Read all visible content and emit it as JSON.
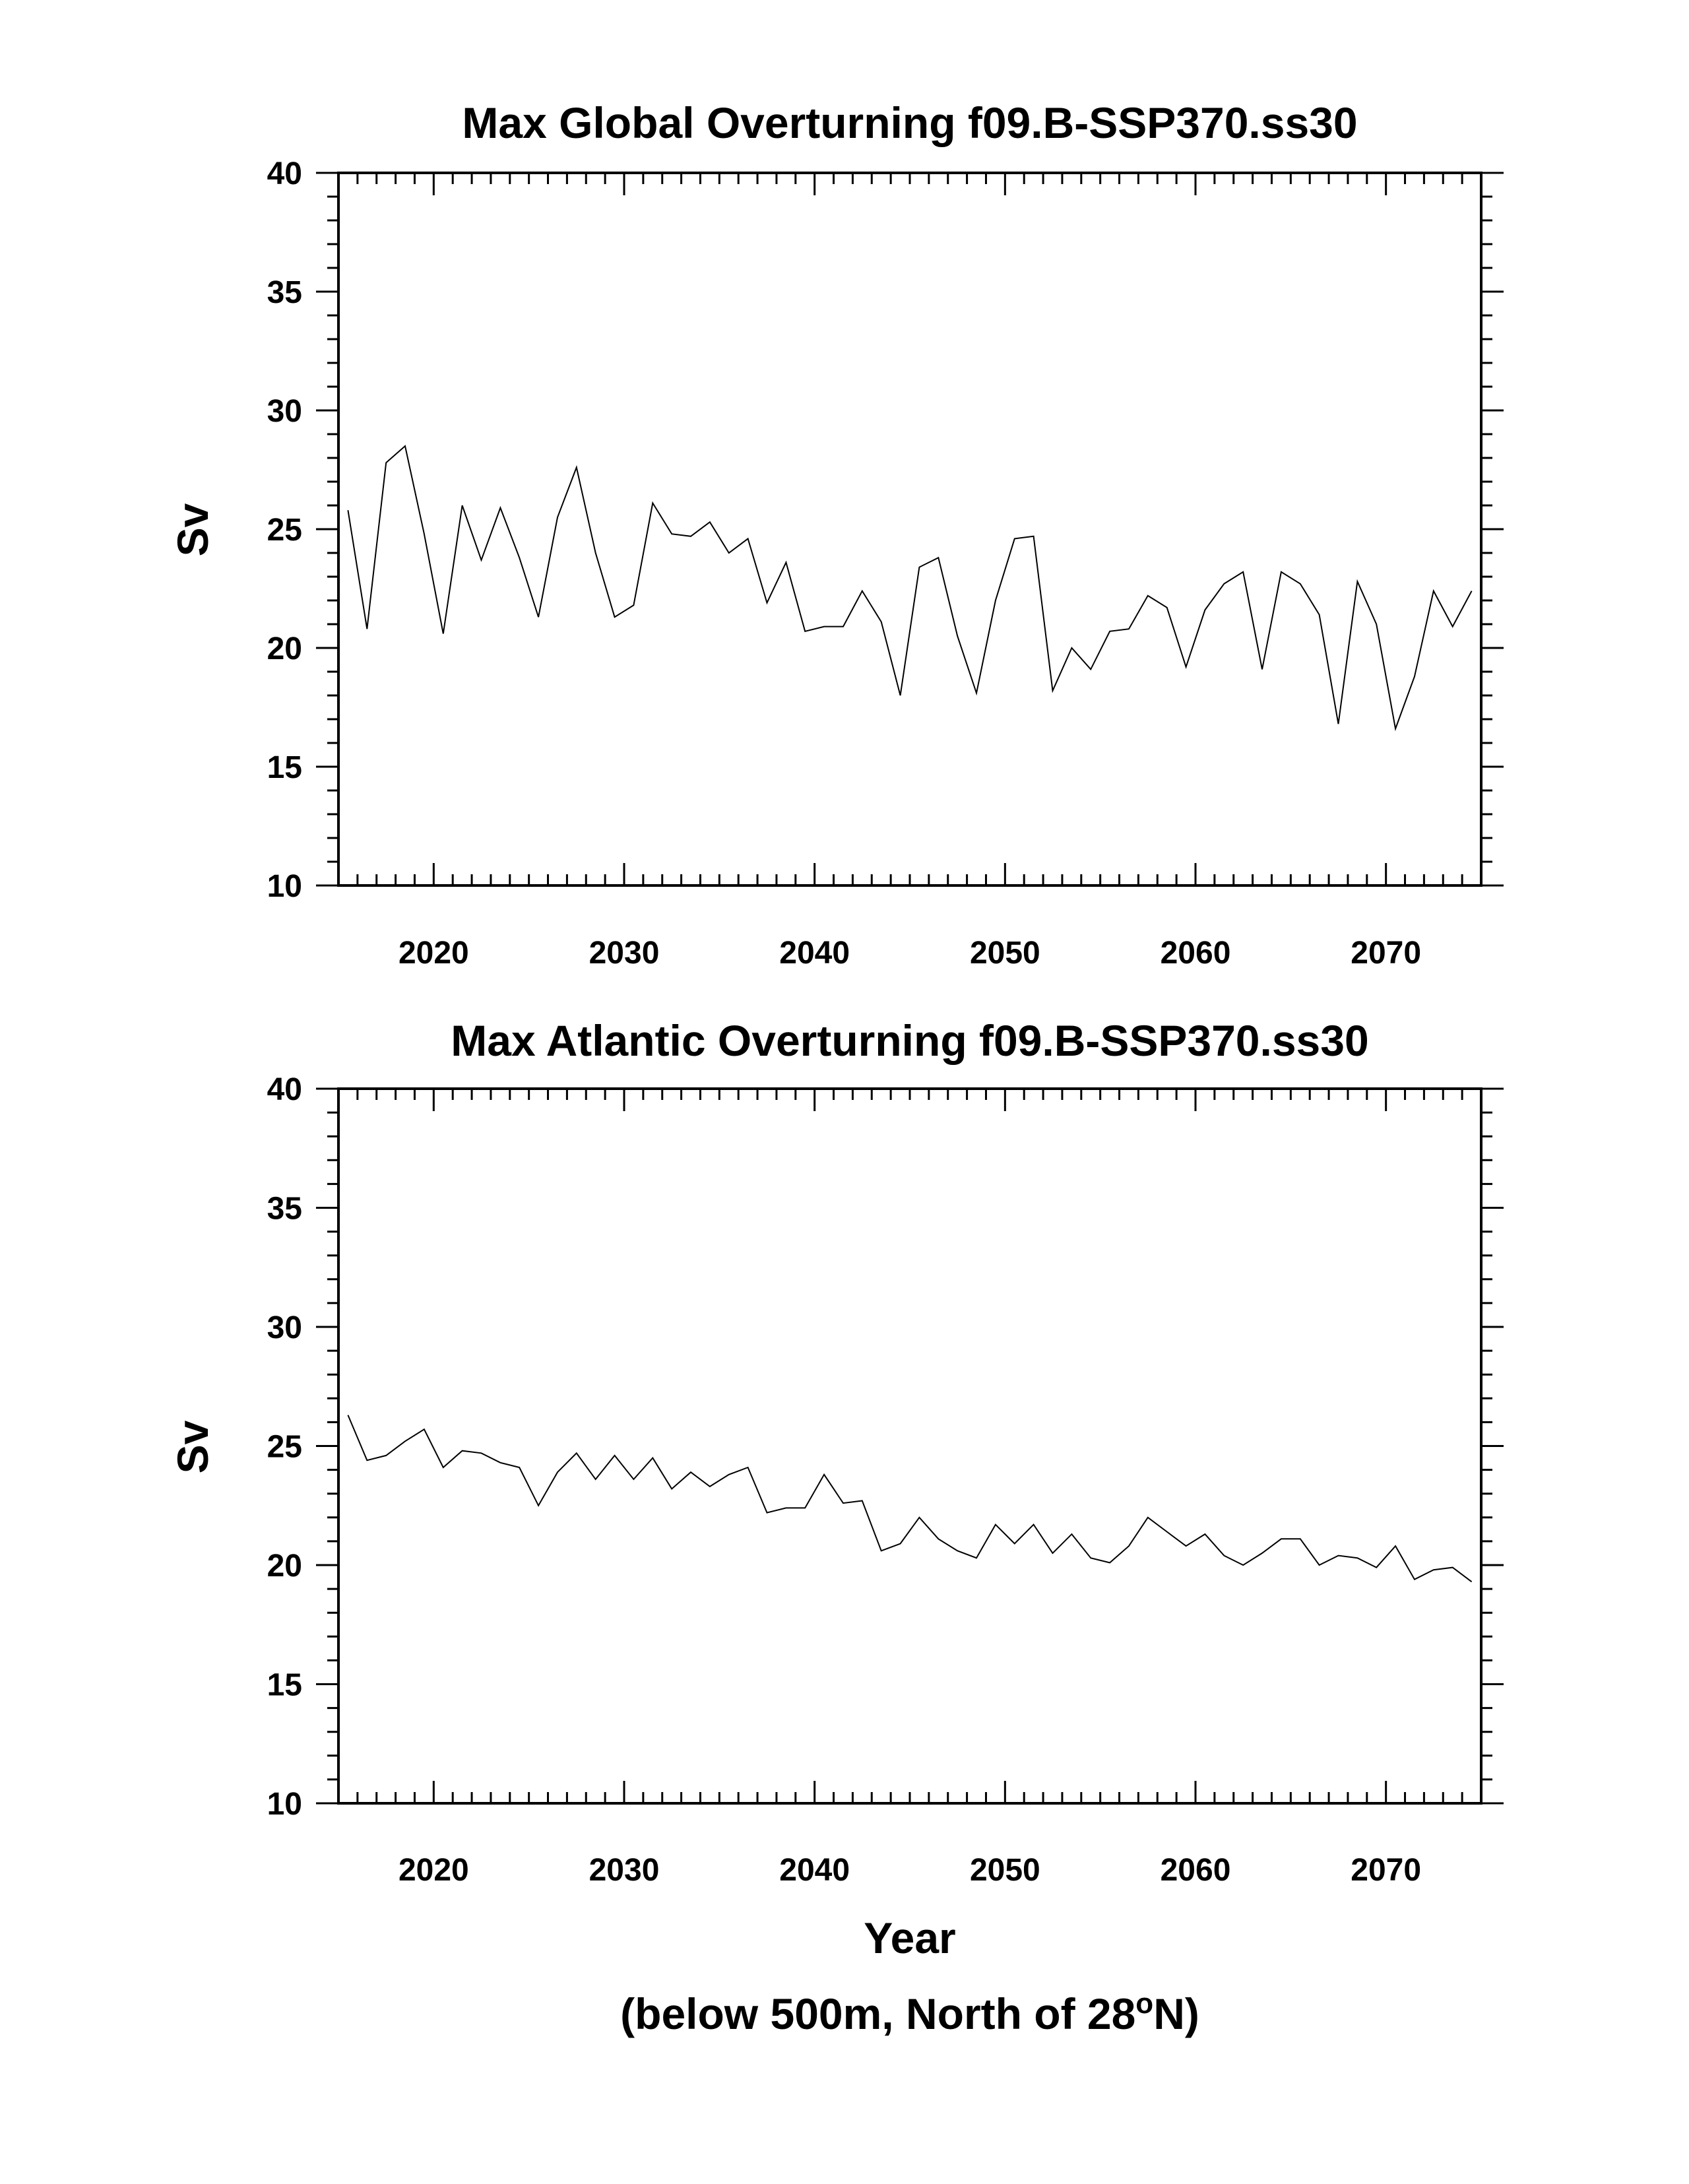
{
  "chart_data": [
    {
      "type": "line",
      "title": "Max Global Overturning f09.B-SSP370.ss30",
      "ylabel": "Sv",
      "xlabel": "",
      "xlim": [
        2015,
        2075
      ],
      "ylim": [
        10,
        40
      ],
      "xticks": [
        2020,
        2030,
        2040,
        2050,
        2060,
        2070
      ],
      "yticks": [
        10,
        15,
        20,
        25,
        30,
        35,
        40
      ],
      "x_start": 2015.5,
      "grid": false,
      "legend": "none",
      "line_color": "#000000",
      "series": [
        {
          "values": [
            25.8,
            20.8,
            27.8,
            28.5,
            24.8,
            20.6,
            26.0,
            23.7,
            25.9,
            23.8,
            21.3,
            25.5,
            27.6,
            24.0,
            21.3,
            21.8,
            26.1,
            24.8,
            24.7,
            25.3,
            24.0,
            24.6,
            21.9,
            23.6,
            20.7,
            20.9,
            20.9,
            22.4,
            21.1,
            18.0,
            23.4,
            23.8,
            20.5,
            18.1,
            22.0,
            24.6,
            24.7,
            18.2,
            20.0,
            19.1,
            20.7,
            20.8,
            22.2,
            21.7,
            19.2,
            21.6,
            22.7,
            23.2,
            19.1,
            23.2,
            22.7,
            21.4,
            16.8,
            22.8,
            21.0,
            16.6,
            18.8,
            22.4,
            20.9,
            22.4
          ]
        }
      ]
    },
    {
      "type": "line",
      "title": "Max Atlantic Overturning f09.B-SSP370.ss30",
      "ylabel": "Sv",
      "xlabel": "Year",
      "xlim": [
        2015,
        2075
      ],
      "ylim": [
        10,
        40
      ],
      "xticks": [
        2020,
        2030,
        2040,
        2050,
        2060,
        2070
      ],
      "yticks": [
        10,
        15,
        20,
        25,
        30,
        35,
        40
      ],
      "x_start": 2015.5,
      "grid": false,
      "legend": "none",
      "line_color": "#000000",
      "series": [
        {
          "values": [
            26.3,
            24.4,
            24.6,
            25.2,
            25.7,
            24.1,
            24.8,
            24.7,
            24.3,
            24.1,
            22.5,
            23.9,
            24.7,
            23.6,
            24.6,
            23.6,
            24.5,
            23.2,
            23.9,
            23.3,
            23.8,
            24.1,
            22.2,
            22.4,
            22.4,
            23.8,
            22.6,
            22.7,
            20.6,
            20.9,
            22.0,
            21.1,
            20.6,
            20.3,
            21.7,
            20.9,
            21.7,
            20.5,
            21.3,
            20.3,
            20.1,
            20.8,
            22.0,
            21.4,
            20.8,
            21.3,
            20.4,
            20.0,
            20.5,
            21.1,
            21.1,
            20.0,
            20.4,
            20.3,
            19.9,
            20.8,
            19.4,
            19.8,
            19.9,
            19.3
          ]
        }
      ]
    }
  ],
  "footnote": {
    "prefix": "(below 500m, North of 28",
    "superscript": "o",
    "suffix": "N)"
  }
}
